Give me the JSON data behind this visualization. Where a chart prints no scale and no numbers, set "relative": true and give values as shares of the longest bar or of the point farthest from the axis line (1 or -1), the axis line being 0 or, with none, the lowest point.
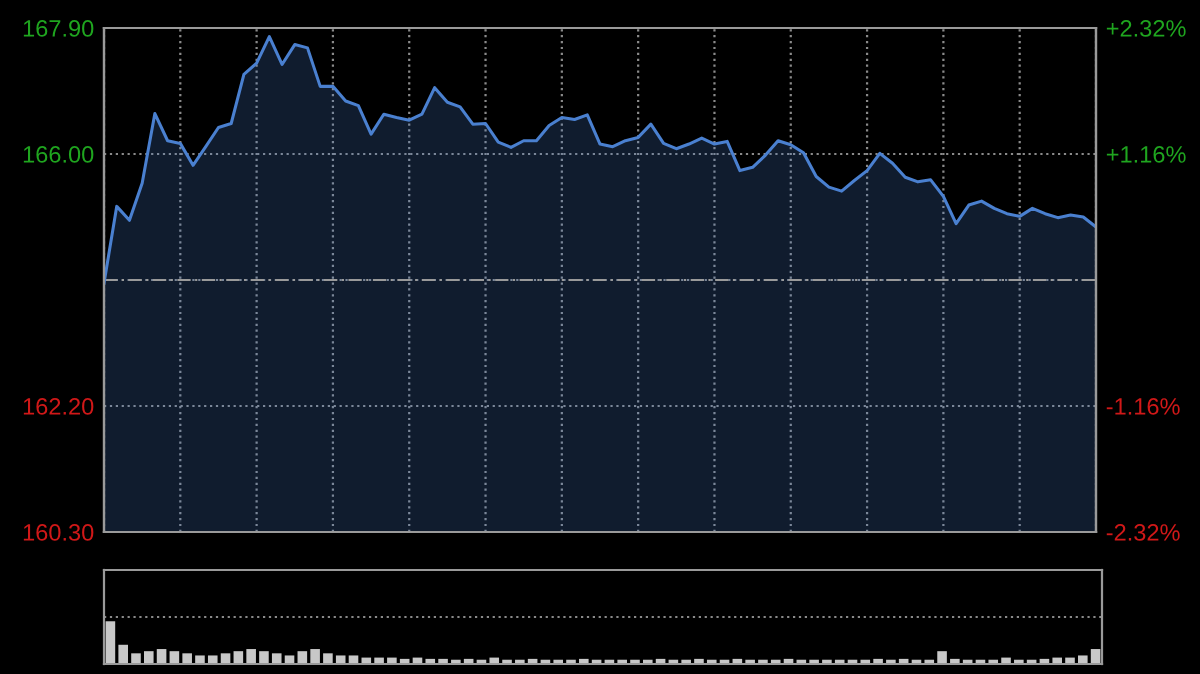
{
  "chart_data": [
    {
      "type": "area",
      "categories": [
        null,
        null,
        null,
        null,
        null,
        null,
        null,
        null,
        null,
        null,
        null,
        null,
        null,
        null,
        null,
        null,
        null,
        null,
        null,
        null,
        null,
        null,
        null,
        null,
        null,
        null,
        null,
        null,
        null,
        null,
        null,
        null,
        null,
        null,
        null,
        null,
        null,
        null,
        null,
        null,
        null,
        null,
        null,
        null,
        null,
        null,
        null,
        null,
        null,
        null,
        null,
        null,
        null,
        null,
        null,
        null,
        null,
        null,
        null,
        null,
        null,
        null,
        null,
        null,
        null,
        null,
        null,
        null,
        null,
        null,
        null,
        null,
        null,
        null,
        null,
        null,
        null,
        null,
        null
      ],
      "series": [
        {
          "color": "#4a80d0",
          "values": [
            164.05,
            165.21,
            165.0,
            165.56,
            166.61,
            166.2,
            166.16,
            165.83,
            166.11,
            166.4,
            166.46,
            167.2,
            167.37,
            167.77,
            167.35,
            167.65,
            167.6,
            167.02,
            167.02,
            166.8,
            166.73,
            166.3,
            166.6,
            166.55,
            166.51,
            166.6,
            167.0,
            166.78,
            166.71,
            166.45,
            166.46,
            166.18,
            166.1,
            166.2,
            166.2,
            166.43,
            166.55,
            166.52,
            166.59,
            166.15,
            166.11,
            166.2,
            166.25,
            166.45,
            166.16,
            166.08,
            166.15,
            166.24,
            166.15,
            166.19,
            165.75,
            165.8,
            165.98,
            166.2,
            166.14,
            166.02,
            165.66,
            165.5,
            165.44,
            165.6,
            165.75,
            166.01,
            165.86,
            165.65,
            165.58,
            165.61,
            165.36,
            164.95,
            165.23,
            165.29,
            165.18,
            165.1,
            165.06,
            165.18,
            165.1,
            165.04,
            165.08,
            165.05,
            164.9
          ]
        }
      ],
      "ylim": [
        160.3,
        167.9
      ],
      "yticks": [
        {
          "value": 160.3,
          "label": "160.30"
        },
        {
          "value": 162.2,
          "label": "162.20"
        },
        {
          "value": 164.1,
          "label": null
        },
        {
          "value": 166.0,
          "label": "166.00"
        },
        {
          "value": 167.9,
          "label": "167.90"
        }
      ],
      "y2lim": [
        -2.32,
        2.32
      ],
      "y2ticks": [
        {
          "value": -2.32,
          "label": "-2.32%"
        },
        {
          "value": -1.16,
          "label": "-1.16%"
        },
        {
          "value": 0,
          "label": null
        },
        {
          "value": 1.16,
          "label": "+1.16%"
        },
        {
          "value": 2.32,
          "label": "+2.32%"
        }
      ],
      "ref_lines": [
        {
          "axis": "y",
          "value": 164.1,
          "line_style": "dashed"
        }
      ],
      "grid": true,
      "tick_labels": "y"
    },
    {
      "type": "bar",
      "categories": [
        null,
        null,
        null,
        null,
        null,
        null,
        null,
        null,
        null,
        null,
        null,
        null,
        null,
        null,
        null,
        null,
        null,
        null,
        null,
        null,
        null,
        null,
        null,
        null,
        null,
        null,
        null,
        null,
        null,
        null,
        null,
        null,
        null,
        null,
        null,
        null,
        null,
        null,
        null,
        null,
        null,
        null,
        null,
        null,
        null,
        null,
        null,
        null,
        null,
        null,
        null,
        null,
        null,
        null,
        null,
        null,
        null,
        null,
        null,
        null,
        null,
        null,
        null,
        null,
        null,
        null,
        null,
        null,
        null,
        null,
        null,
        null,
        null,
        null,
        null,
        null,
        null,
        null
      ],
      "values": [
        1.0,
        0.45,
        0.25,
        0.3,
        0.35,
        0.3,
        0.25,
        0.2,
        0.2,
        0.25,
        0.3,
        0.35,
        0.3,
        0.25,
        0.2,
        0.3,
        0.35,
        0.25,
        0.2,
        0.2,
        0.15,
        0.15,
        0.15,
        0.12,
        0.15,
        0.12,
        0.12,
        0.1,
        0.12,
        0.1,
        0.15,
        0.1,
        0.1,
        0.12,
        0.1,
        0.1,
        0.1,
        0.12,
        0.1,
        0.1,
        0.1,
        0.1,
        0.1,
        0.12,
        0.1,
        0.1,
        0.12,
        0.1,
        0.1,
        0.12,
        0.1,
        0.1,
        0.1,
        0.12,
        0.1,
        0.1,
        0.1,
        0.1,
        0.1,
        0.1,
        0.12,
        0.1,
        0.12,
        0.1,
        0.1,
        0.3,
        0.12,
        0.1,
        0.1,
        0.1,
        0.15,
        0.1,
        0.1,
        0.12,
        0.15,
        0.15,
        0.2,
        0.35
      ],
      "color": "#c8c8c8",
      "relative": true,
      "grid": "y",
      "tick_labels": false
    }
  ]
}
